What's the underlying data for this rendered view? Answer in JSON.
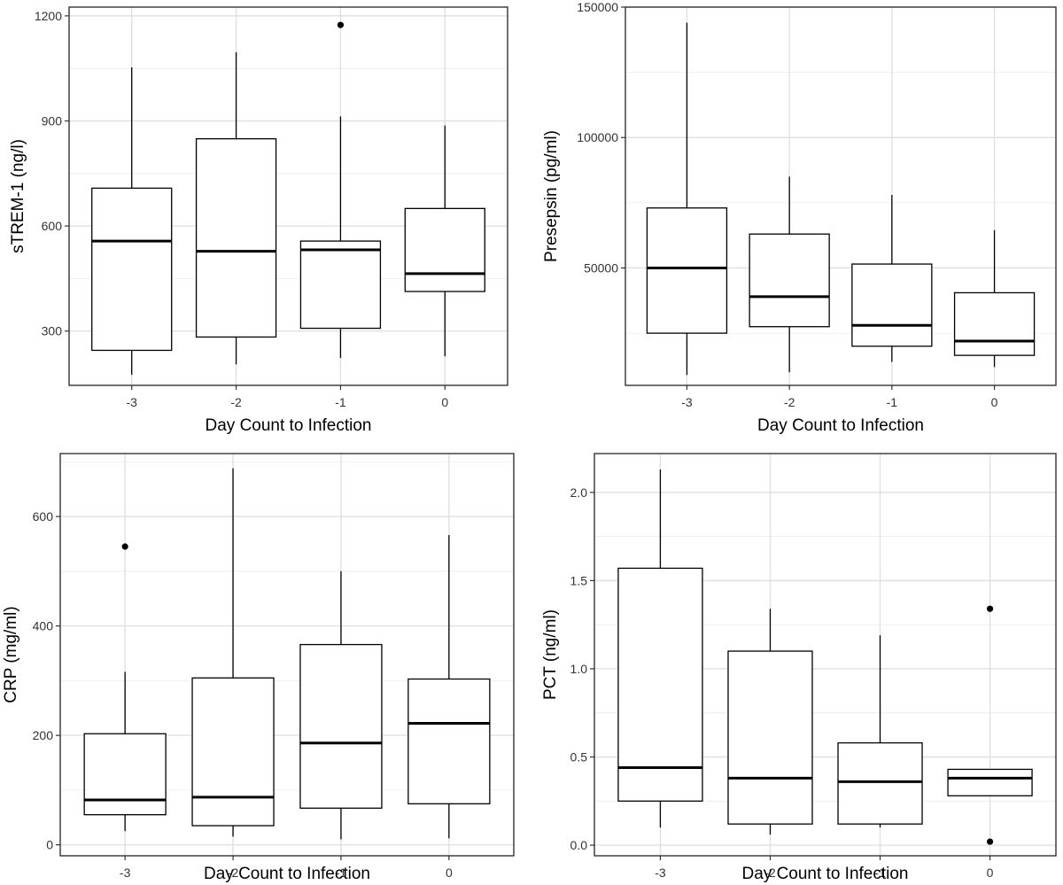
{
  "chart_data": [
    {
      "type": "box",
      "xlabel": "Day Count to Infection",
      "ylabel": "sTREM-1 (ng/l)",
      "categories": [
        "-3",
        "-2",
        "-1",
        "0"
      ],
      "ylim": [
        145,
        1225
      ],
      "yticks": [
        300,
        600,
        900,
        1200
      ],
      "yticks_labels": [
        "300",
        "600",
        "900",
        "1200"
      ],
      "boxes": [
        {
          "category": "-3",
          "whisker_low": 175,
          "q1": 245,
          "median": 557,
          "q3": 708,
          "whisker_high": 1053,
          "outliers": []
        },
        {
          "category": "-2",
          "whisker_low": 205,
          "q1": 283,
          "median": 528,
          "q3": 849,
          "whisker_high": 1096,
          "outliers": []
        },
        {
          "category": "-1",
          "whisker_low": 223,
          "q1": 308,
          "median": 532,
          "q3": 557,
          "whisker_high": 913,
          "outliers": [
            1174
          ]
        },
        {
          "category": "0",
          "whisker_low": 228,
          "q1": 413,
          "median": 464,
          "q3": 650,
          "whisker_high": 887,
          "outliers": []
        }
      ]
    },
    {
      "type": "box",
      "xlabel": "Day Count to Infection",
      "ylabel": "Presepsin (pg/ml)",
      "categories": [
        "-3",
        "-2",
        "-1",
        "0"
      ],
      "ylim": [
        5000,
        150000
      ],
      "yticks": [
        50000,
        100000,
        150000
      ],
      "yticks_labels": [
        "50000",
        "100000",
        "150000"
      ],
      "boxes": [
        {
          "category": "-3",
          "whisker_low": 9000,
          "q1": 25000,
          "median": 50000,
          "q3": 73000,
          "whisker_high": 144000,
          "outliers": []
        },
        {
          "category": "-2",
          "whisker_low": 10000,
          "q1": 27500,
          "median": 39000,
          "q3": 63000,
          "whisker_high": 85000,
          "outliers": []
        },
        {
          "category": "-1",
          "whisker_low": 14000,
          "q1": 20000,
          "median": 28000,
          "q3": 51500,
          "whisker_high": 78000,
          "outliers": []
        },
        {
          "category": "0",
          "whisker_low": 12000,
          "q1": 16500,
          "median": 22000,
          "q3": 40500,
          "whisker_high": 64500,
          "outliers": []
        }
      ]
    },
    {
      "type": "box",
      "xlabel": "Day Count to Infection",
      "ylabel": "CRP (mg/ml)",
      "categories": [
        "-3",
        "-2",
        "-1",
        "0"
      ],
      "ylim": [
        -20,
        715
      ],
      "yticks": [
        0,
        200,
        400,
        600
      ],
      "yticks_labels": [
        "0",
        "200",
        "400",
        "600"
      ],
      "boxes": [
        {
          "category": "-3",
          "whisker_low": 25,
          "q1": 55,
          "median": 82,
          "q3": 203,
          "whisker_high": 316,
          "outliers": [
            545
          ]
        },
        {
          "category": "-2",
          "whisker_low": 15,
          "q1": 35,
          "median": 87,
          "q3": 305,
          "whisker_high": 688,
          "outliers": []
        },
        {
          "category": "-1",
          "whisker_low": 10,
          "q1": 67,
          "median": 186,
          "q3": 366,
          "whisker_high": 500,
          "outliers": []
        },
        {
          "category": "0",
          "whisker_low": 12,
          "q1": 75,
          "median": 222,
          "q3": 303,
          "whisker_high": 566,
          "outliers": []
        }
      ]
    },
    {
      "type": "box",
      "xlabel": "Day Count to Infection",
      "ylabel": "PCT (ng/ml)",
      "categories": [
        "-3",
        "-2",
        "-1",
        "0"
      ],
      "ylim": [
        -0.06,
        2.22
      ],
      "yticks": [
        0.0,
        0.5,
        1.0,
        1.5,
        2.0
      ],
      "yticks_labels": [
        "0.0",
        "0.5",
        "1.0",
        "1.5",
        "2.0"
      ],
      "boxes": [
        {
          "category": "-3",
          "whisker_low": 0.1,
          "q1": 0.25,
          "median": 0.44,
          "q3": 1.57,
          "whisker_high": 2.13,
          "outliers": []
        },
        {
          "category": "-2",
          "whisker_low": 0.06,
          "q1": 0.12,
          "median": 0.38,
          "q3": 1.1,
          "whisker_high": 1.34,
          "outliers": []
        },
        {
          "category": "-1",
          "whisker_low": 0.1,
          "q1": 0.12,
          "median": 0.36,
          "q3": 0.58,
          "whisker_high": 1.19,
          "outliers": []
        },
        {
          "category": "0",
          "whisker_low": 0.28,
          "q1": 0.28,
          "median": 0.38,
          "q3": 0.43,
          "whisker_high": 0.43,
          "outliers": [
            1.34,
            0.02
          ]
        }
      ]
    }
  ]
}
